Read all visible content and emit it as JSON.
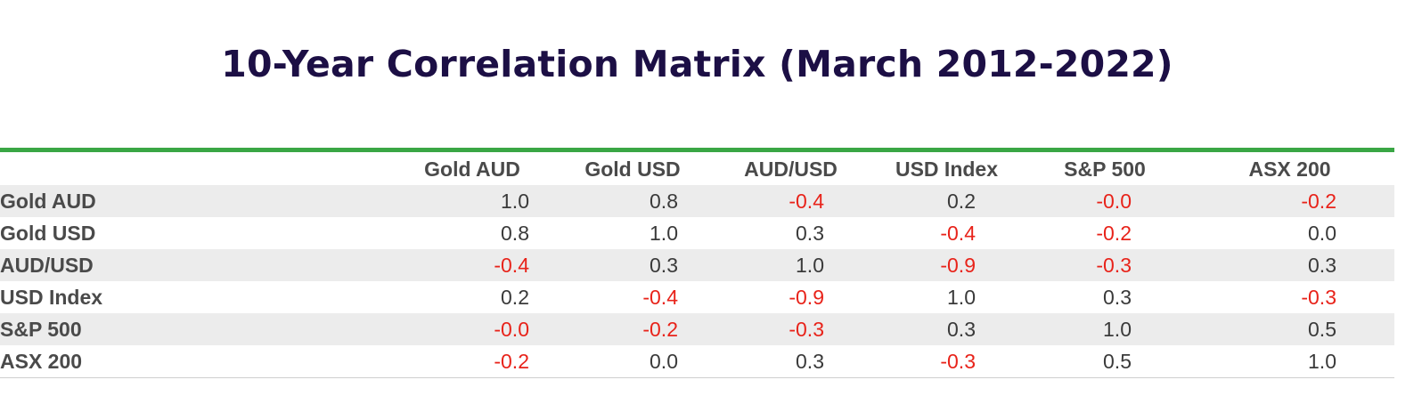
{
  "chart_data": {
    "type": "table",
    "title": "10-Year Correlation Matrix (March 2012-2022)",
    "columns": [
      "Gold AUD",
      "Gold USD",
      "AUD/USD",
      "USD Index",
      "S&P 500",
      "ASX 200"
    ],
    "rows": [
      {
        "label": "Gold AUD",
        "values": [
          "1.0",
          "0.8",
          "-0.4",
          "0.2",
          "-0.0",
          "-0.2"
        ]
      },
      {
        "label": "Gold USD",
        "values": [
          "0.8",
          "1.0",
          "0.3",
          "-0.4",
          "-0.2",
          "0.0"
        ]
      },
      {
        "label": "AUD/USD",
        "values": [
          "-0.4",
          "0.3",
          "1.0",
          "-0.9",
          "-0.3",
          "0.3"
        ]
      },
      {
        "label": "USD Index",
        "values": [
          "0.2",
          "-0.4",
          "-0.9",
          "1.0",
          "0.3",
          "-0.3"
        ]
      },
      {
        "label": "S&P 500",
        "values": [
          "-0.0",
          "-0.2",
          "-0.3",
          "0.3",
          "1.0",
          "0.5"
        ]
      },
      {
        "label": "ASX 200",
        "values": [
          "-0.2",
          "0.0",
          "0.3",
          "-0.3",
          "0.5",
          "1.0"
        ]
      }
    ],
    "colors": {
      "title": "#1c0f45",
      "header_rule": "#3aa645",
      "negative": "#e8231a",
      "positive": "#3a3a3a",
      "row_stripe": "#ececec"
    }
  }
}
